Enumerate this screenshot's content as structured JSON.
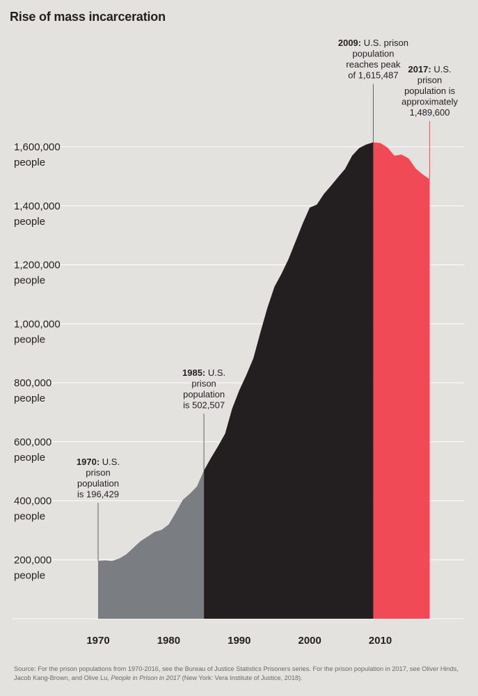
{
  "title": "Rise of mass incarceration",
  "chart_data": {
    "type": "area",
    "title": "Rise of mass incarceration",
    "xlim": [
      1965,
      2020
    ],
    "ylim": [
      0,
      1700000
    ],
    "x_ticks": [
      1970,
      1980,
      1990,
      2000,
      2010
    ],
    "y_ticks": [
      {
        "value": 200000,
        "label": "200,000",
        "unit": "people"
      },
      {
        "value": 400000,
        "label": "400,000",
        "unit": "people"
      },
      {
        "value": 600000,
        "label": "600,000",
        "unit": "people"
      },
      {
        "value": 800000,
        "label": "800,000",
        "unit": "people"
      },
      {
        "value": 1000000,
        "label": "1,000,000",
        "unit": "people"
      },
      {
        "value": 1200000,
        "label": "1,200,000",
        "unit": "people"
      },
      {
        "value": 1400000,
        "label": "1,400,000",
        "unit": "people"
      },
      {
        "value": 1600000,
        "label": "1,600,000",
        "unit": "people"
      }
    ],
    "grid": true,
    "segment_colors": [
      "#7a7e82",
      "#231f20",
      "#ef4a55"
    ],
    "segment_breaks": [
      1985,
      2009
    ],
    "x": [
      1970,
      1971,
      1972,
      1973,
      1974,
      1975,
      1976,
      1977,
      1978,
      1979,
      1980,
      1981,
      1982,
      1983,
      1984,
      1985,
      1986,
      1987,
      1988,
      1989,
      1990,
      1991,
      1992,
      1993,
      1994,
      1995,
      1996,
      1997,
      1998,
      1999,
      2000,
      2001,
      2002,
      2003,
      2004,
      2005,
      2006,
      2007,
      2008,
      2009,
      2010,
      2011,
      2012,
      2013,
      2014,
      2015,
      2016,
      2017
    ],
    "y": [
      196429,
      198061,
      196183,
      204211,
      218466,
      240593,
      262833,
      278141,
      294396,
      301470,
      319598,
      360029,
      402914,
      423898,
      448264,
      502507,
      545133,
      585084,
      627402,
      712364,
      773919,
      825559,
      882500,
      970444,
      1054702,
      1125874,
      1170000,
      1220000,
      1280000,
      1340000,
      1394000,
      1404000,
      1440000,
      1468000,
      1497000,
      1525000,
      1570000,
      1596000,
      1608000,
      1615487,
      1613000,
      1598000,
      1570000,
      1574000,
      1561000,
      1526800,
      1506800,
      1489600
    ]
  },
  "annotations": [
    {
      "year": 1970,
      "bold": "1970:",
      "lines": [
        "U.S.",
        "prison",
        "population",
        "is 196,429"
      ]
    },
    {
      "year": 1985,
      "bold": "1985:",
      "lines": [
        "U.S.",
        "prison",
        "population",
        "is 502,507"
      ]
    },
    {
      "year": 2009,
      "bold": "2009:",
      "lines": [
        "U.S. prison",
        "population",
        "reaches peak",
        "of 1,615,487"
      ]
    },
    {
      "year": 2017,
      "bold": "2017:",
      "lines": [
        "U.S.",
        "prison",
        "population is",
        "approximately",
        "1,489,600"
      ]
    }
  ],
  "source": {
    "prefix": "Source: For the prison populations from 1970-2016, see the Bureau of Justice Statistics Prisoners series. For the prison population in 2017, see Oliver Hinds, Jacob Kang-Brown, and Olive Lu, ",
    "italic": "People in Prison in 2017",
    "suffix": " (New York: Vera Institute of Justice, 2018)."
  }
}
